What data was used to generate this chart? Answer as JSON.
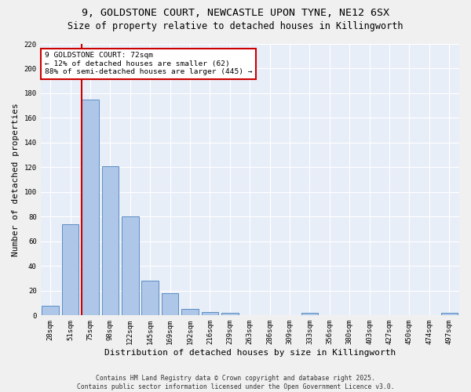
{
  "title_line1": "9, GOLDSTONE COURT, NEWCASTLE UPON TYNE, NE12 6SX",
  "title_line2": "Size of property relative to detached houses in Killingworth",
  "xlabel": "Distribution of detached houses by size in Killingworth",
  "ylabel": "Number of detached properties",
  "bar_color": "#aec6e8",
  "bar_edge_color": "#5b8ec4",
  "categories": [
    "28sqm",
    "51sqm",
    "75sqm",
    "98sqm",
    "122sqm",
    "145sqm",
    "169sqm",
    "192sqm",
    "216sqm",
    "239sqm",
    "263sqm",
    "286sqm",
    "309sqm",
    "333sqm",
    "356sqm",
    "380sqm",
    "403sqm",
    "427sqm",
    "450sqm",
    "474sqm",
    "497sqm"
  ],
  "values": [
    8,
    74,
    175,
    121,
    80,
    28,
    18,
    5,
    3,
    2,
    0,
    0,
    0,
    2,
    0,
    0,
    0,
    0,
    0,
    0,
    2
  ],
  "vline_index": 2,
  "vline_color": "#cc0000",
  "annotation_text": "9 GOLDSTONE COURT: 72sqm\n← 12% of detached houses are smaller (62)\n88% of semi-detached houses are larger (445) →",
  "annotation_box_color": "#ffffff",
  "annotation_box_edge": "#cc0000",
  "ylim": [
    0,
    220
  ],
  "yticks": [
    0,
    20,
    40,
    60,
    80,
    100,
    120,
    140,
    160,
    180,
    200,
    220
  ],
  "background_color": "#e8eef8",
  "fig_background": "#f0f0f0",
  "footer_line1": "Contains HM Land Registry data © Crown copyright and database right 2025.",
  "footer_line2": "Contains public sector information licensed under the Open Government Licence v3.0.",
  "title_fontsize": 9.5,
  "subtitle_fontsize": 8.5,
  "tick_fontsize": 6.5,
  "label_fontsize": 8,
  "annotation_fontsize": 6.8,
  "footer_fontsize": 5.8
}
